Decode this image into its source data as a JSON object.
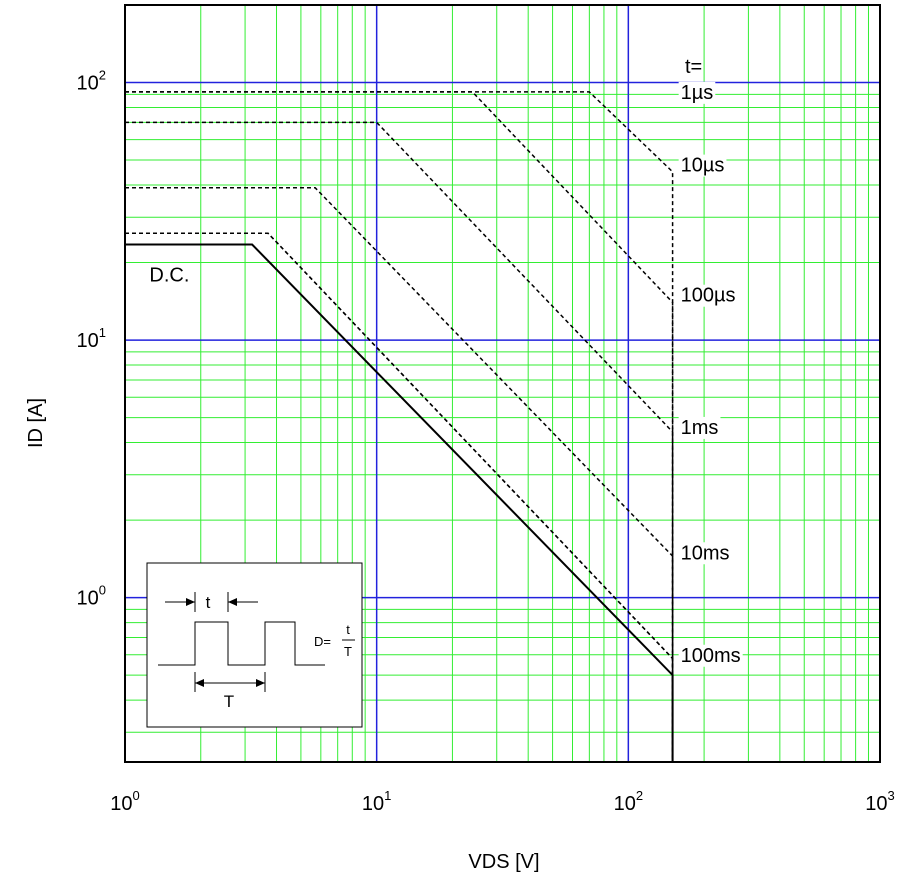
{
  "chart_data": {
    "type": "line",
    "title": "",
    "xlabel": "VDS [V]",
    "ylabel": "ID [A]",
    "x_scale": "log",
    "y_scale": "log",
    "xlim": [
      1,
      1000
    ],
    "ylim": [
      0.23,
      200
    ],
    "grid": true,
    "x_ticks": [
      {
        "base": "10",
        "exp": "0",
        "value": 1
      },
      {
        "base": "10",
        "exp": "1",
        "value": 10
      },
      {
        "base": "10",
        "exp": "2",
        "value": 100
      },
      {
        "base": "10",
        "exp": "3",
        "value": 1000
      }
    ],
    "y_ticks": [
      {
        "base": "10",
        "exp": "0",
        "value": 1
      },
      {
        "base": "10",
        "exp": "1",
        "value": 10
      },
      {
        "base": "10",
        "exp": "2",
        "value": 100
      }
    ],
    "legend_prefix": "t=",
    "series": [
      {
        "name": "1µs",
        "style": "dashed",
        "label_at": [
          150,
          92
        ],
        "points": [
          [
            1,
            92
          ],
          [
            70,
            92
          ],
          [
            150,
            45
          ],
          [
            150,
            0.23
          ]
        ]
      },
      {
        "name": "10µs",
        "style": "dashed",
        "label_at": [
          150,
          48
        ],
        "points": [
          [
            1,
            92
          ],
          [
            24,
            92
          ],
          [
            150,
            14
          ],
          [
            150,
            0.23
          ]
        ]
      },
      {
        "name": "100µs",
        "style": "dashed",
        "label_at": [
          150,
          15
        ],
        "points": [
          [
            1,
            70
          ],
          [
            10,
            70
          ],
          [
            150,
            4.4
          ],
          [
            150,
            0.23
          ]
        ]
      },
      {
        "name": "1ms",
        "style": "dashed",
        "label_at": [
          150,
          4.6
        ],
        "points": [
          [
            1,
            39
          ],
          [
            5.7,
            39
          ],
          [
            150,
            1.45
          ],
          [
            150,
            0.23
          ]
        ]
      },
      {
        "name": "10ms",
        "style": "dashed",
        "label_at": [
          150,
          1.5
        ],
        "points": [
          [
            1,
            26
          ],
          [
            3.7,
            26
          ],
          [
            150,
            0.58
          ],
          [
            150,
            0.23
          ]
        ]
      },
      {
        "name": "100ms",
        "style": "dashed",
        "label_at": [
          150,
          0.6
        ],
        "points": [
          [
            1,
            26
          ],
          [
            3.7,
            26
          ],
          [
            150,
            0.58
          ],
          [
            150,
            0.23
          ]
        ]
      },
      {
        "name": "D.C.",
        "style": "solid",
        "label_at": [
          1.25,
          18
        ],
        "points": [
          [
            1,
            23.5
          ],
          [
            3.2,
            23.5
          ],
          [
            150,
            0.5
          ],
          [
            150,
            0.23
          ]
        ]
      }
    ]
  },
  "inset": {
    "t_label": "t",
    "period_label": "T",
    "formula_prefix": "D=",
    "fraction_num": "t",
    "fraction_den": "T"
  },
  "colors": {
    "minor_grid": "#33ee33",
    "major_grid": "#2222dd",
    "curves": "#000000"
  }
}
